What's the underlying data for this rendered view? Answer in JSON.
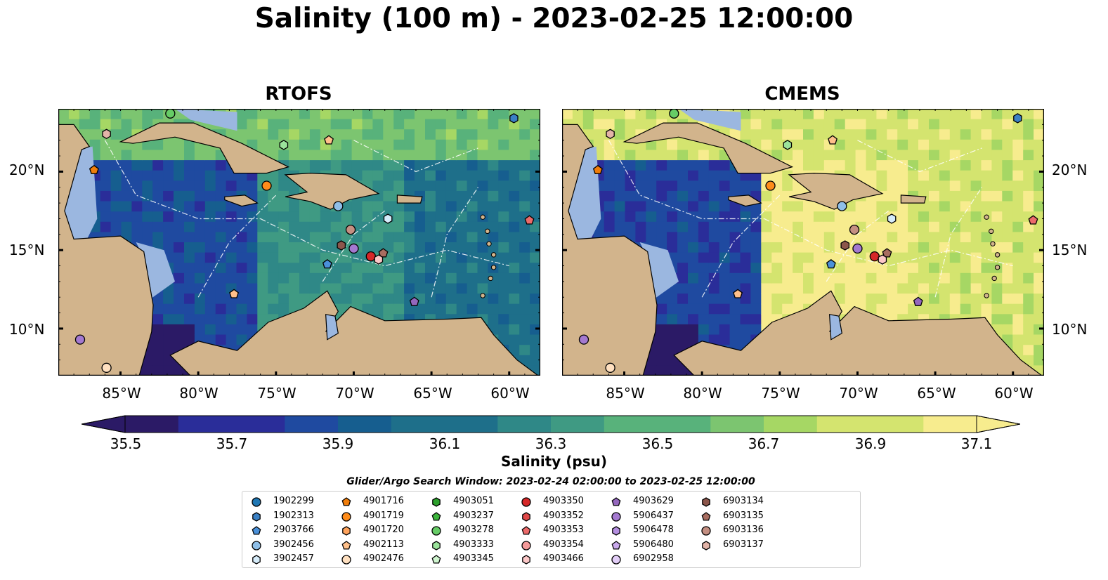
{
  "title": "Salinity (100 m) - 2023-02-25 12:00:00",
  "panels": [
    {
      "title": "RTOFS"
    },
    {
      "title": "CMEMS"
    }
  ],
  "lat_labels": [
    "20°N",
    "15°N",
    "10°N"
  ],
  "lon_labels": [
    "85°W",
    "80°W",
    "75°W",
    "70°W",
    "65°W",
    "60°W"
  ],
  "colors": {
    "land": "#d2b48c",
    "shallow": "#9bb7e0",
    "colormap_low": "#2a1a66",
    "colormap_high": "#f7ec8e"
  },
  "colorbar": {
    "label": "Salinity (psu)",
    "ticks": [
      "35.5",
      "35.7",
      "35.9",
      "36.1",
      "36.3",
      "36.5",
      "36.7",
      "36.9",
      "37.1"
    ]
  },
  "legend": {
    "title": "Glider/Argo Search Window: 2023-02-24 02:00:00 to 2023-02-25 12:00:00",
    "items": [
      {
        "label": "1902299",
        "marker": "circle",
        "color": "#1f77b4"
      },
      {
        "label": "1902313",
        "marker": "hexagon",
        "color": "#3a80c4"
      },
      {
        "label": "2903766",
        "marker": "pentagon",
        "color": "#4a90d9"
      },
      {
        "label": "3902456",
        "marker": "circle",
        "color": "#8fbfe8"
      },
      {
        "label": "3902457",
        "marker": "hexagon",
        "color": "#d6ecfa"
      },
      {
        "label": "4901716",
        "marker": "pentagon",
        "color": "#f07d0a"
      },
      {
        "label": "4901719",
        "marker": "circle",
        "color": "#ff8c1a"
      },
      {
        "label": "4901720",
        "marker": "hexagon",
        "color": "#ffa35c"
      },
      {
        "label": "4902113",
        "marker": "pentagon",
        "color": "#ffc08a"
      },
      {
        "label": "4902476",
        "marker": "circle",
        "color": "#ffe0c0"
      },
      {
        "label": "4903051",
        "marker": "hexagon",
        "color": "#2ca02c"
      },
      {
        "label": "4903237",
        "marker": "pentagon",
        "color": "#3cb43c"
      },
      {
        "label": "4903278",
        "marker": "circle",
        "color": "#66cc66"
      },
      {
        "label": "4903333",
        "marker": "hexagon",
        "color": "#9be39b"
      },
      {
        "label": "4903345",
        "marker": "pentagon",
        "color": "#cff5cf"
      },
      {
        "label": "4903350",
        "marker": "circle",
        "color": "#d62728"
      },
      {
        "label": "4903352",
        "marker": "hexagon",
        "color": "#e04848"
      },
      {
        "label": "4903353",
        "marker": "pentagon",
        "color": "#ec6a6a"
      },
      {
        "label": "4903354",
        "marker": "circle",
        "color": "#f59a9a"
      },
      {
        "label": "4903466",
        "marker": "hexagon",
        "color": "#fcc7c7"
      },
      {
        "label": "4903629",
        "marker": "pentagon",
        "color": "#9467bd"
      },
      {
        "label": "5906437",
        "marker": "circle",
        "color": "#a479d0"
      },
      {
        "label": "5906478",
        "marker": "hexagon",
        "color": "#b48ee0"
      },
      {
        "label": "5906480",
        "marker": "pentagon",
        "color": "#c9a9ec"
      },
      {
        "label": "6902958",
        "marker": "circle",
        "color": "#e2cdf7"
      },
      {
        "label": "6903134",
        "marker": "hexagon",
        "color": "#8c564b"
      },
      {
        "label": "6903135",
        "marker": "pentagon",
        "color": "#a86d60"
      },
      {
        "label": "6903136",
        "marker": "circle",
        "color": "#c48f82"
      },
      {
        "label": "6903137",
        "marker": "hexagon",
        "color": "#e3b4a8"
      }
    ]
  },
  "chart_data": [
    {
      "type": "heatmap",
      "title": "RTOFS",
      "xlabel": "",
      "ylabel": "",
      "xlim": [
        -89,
        -58
      ],
      "ylim": [
        7,
        24
      ],
      "colorbar_range": [
        35.5,
        37.1
      ],
      "colorbar_label": "Salinity (psu)",
      "field_description_values": {
        "western_caribbean": 35.85,
        "central_caribbean": 36.3,
        "eastern_caribbean": 36.1,
        "atlantic_north": 36.6,
        "pacific": 35.4
      },
      "markers": [
        {
          "id": "1902313",
          "lon": -59.7,
          "lat": 23.4
        },
        {
          "id": "6903137",
          "lon": -85.9,
          "lat": 22.4
        },
        {
          "id": "4901716",
          "lon": -86.7,
          "lat": 20.1
        },
        {
          "id": "4903333",
          "lon": -74.5,
          "lat": 21.7
        },
        {
          "id": "4902113",
          "lon": -71.6,
          "lat": 22.0
        },
        {
          "id": "4901719",
          "lon": -75.6,
          "lat": 19.1
        },
        {
          "id": "3902456",
          "lon": -71.0,
          "lat": 17.8
        },
        {
          "id": "3902457",
          "lon": -67.8,
          "lat": 17.0
        },
        {
          "id": "6903136",
          "lon": -70.2,
          "lat": 16.3
        },
        {
          "id": "6903134",
          "lon": -70.8,
          "lat": 15.3
        },
        {
          "id": "5906437",
          "lon": -70.0,
          "lat": 15.1
        },
        {
          "id": "6903135",
          "lon": -68.1,
          "lat": 14.8
        },
        {
          "id": "4903350",
          "lon": -68.9,
          "lat": 14.6
        },
        {
          "id": "4903466",
          "lon": -68.4,
          "lat": 14.4
        },
        {
          "id": "2903766",
          "lon": -71.7,
          "lat": 14.1
        },
        {
          "id": "4903353",
          "lon": -58.7,
          "lat": 16.9
        },
        {
          "id": "4902113",
          "lon": -77.7,
          "lat": 12.2
        },
        {
          "id": "4903629",
          "lon": -66.1,
          "lat": 11.7
        },
        {
          "id": "5906437",
          "lon": -87.6,
          "lat": 9.3
        },
        {
          "id": "4902476",
          "lon": -85.9,
          "lat": 7.5
        },
        {
          "id": "4903278",
          "lon": -81.8,
          "lat": 23.7
        }
      ]
    },
    {
      "type": "heatmap",
      "title": "CMEMS",
      "xlabel": "",
      "ylabel": "",
      "xlim": [
        -89,
        -58
      ],
      "ylim": [
        7,
        24
      ],
      "colorbar_range": [
        35.5,
        37.1
      ],
      "colorbar_label": "Salinity (psu)",
      "field_description_values": {
        "western_caribbean": 35.8,
        "central_caribbean": 37.0,
        "eastern_caribbean": 36.9,
        "atlantic_north": 36.9,
        "pacific": 35.4
      },
      "markers": [
        {
          "id": "1902313",
          "lon": -59.7,
          "lat": 23.4
        },
        {
          "id": "6903137",
          "lon": -85.9,
          "lat": 22.4
        },
        {
          "id": "4901716",
          "lon": -86.7,
          "lat": 20.1
        },
        {
          "id": "4903333",
          "lon": -74.5,
          "lat": 21.7
        },
        {
          "id": "4902113",
          "lon": -71.6,
          "lat": 22.0
        },
        {
          "id": "4901719",
          "lon": -75.6,
          "lat": 19.1
        },
        {
          "id": "3902456",
          "lon": -71.0,
          "lat": 17.8
        },
        {
          "id": "3902457",
          "lon": -67.8,
          "lat": 17.0
        },
        {
          "id": "6903136",
          "lon": -70.2,
          "lat": 16.3
        },
        {
          "id": "6903134",
          "lon": -70.8,
          "lat": 15.3
        },
        {
          "id": "5906437",
          "lon": -70.0,
          "lat": 15.1
        },
        {
          "id": "6903135",
          "lon": -68.1,
          "lat": 14.8
        },
        {
          "id": "4903350",
          "lon": -68.9,
          "lat": 14.6
        },
        {
          "id": "4903466",
          "lon": -68.4,
          "lat": 14.4
        },
        {
          "id": "2903766",
          "lon": -71.7,
          "lat": 14.1
        },
        {
          "id": "4903353",
          "lon": -58.7,
          "lat": 16.9
        },
        {
          "id": "4902113",
          "lon": -77.7,
          "lat": 12.2
        },
        {
          "id": "4903629",
          "lon": -66.1,
          "lat": 11.7
        },
        {
          "id": "5906437",
          "lon": -87.6,
          "lat": 9.3
        },
        {
          "id": "4902476",
          "lon": -85.9,
          "lat": 7.5
        },
        {
          "id": "4903278",
          "lon": -81.8,
          "lat": 23.7
        }
      ]
    }
  ]
}
